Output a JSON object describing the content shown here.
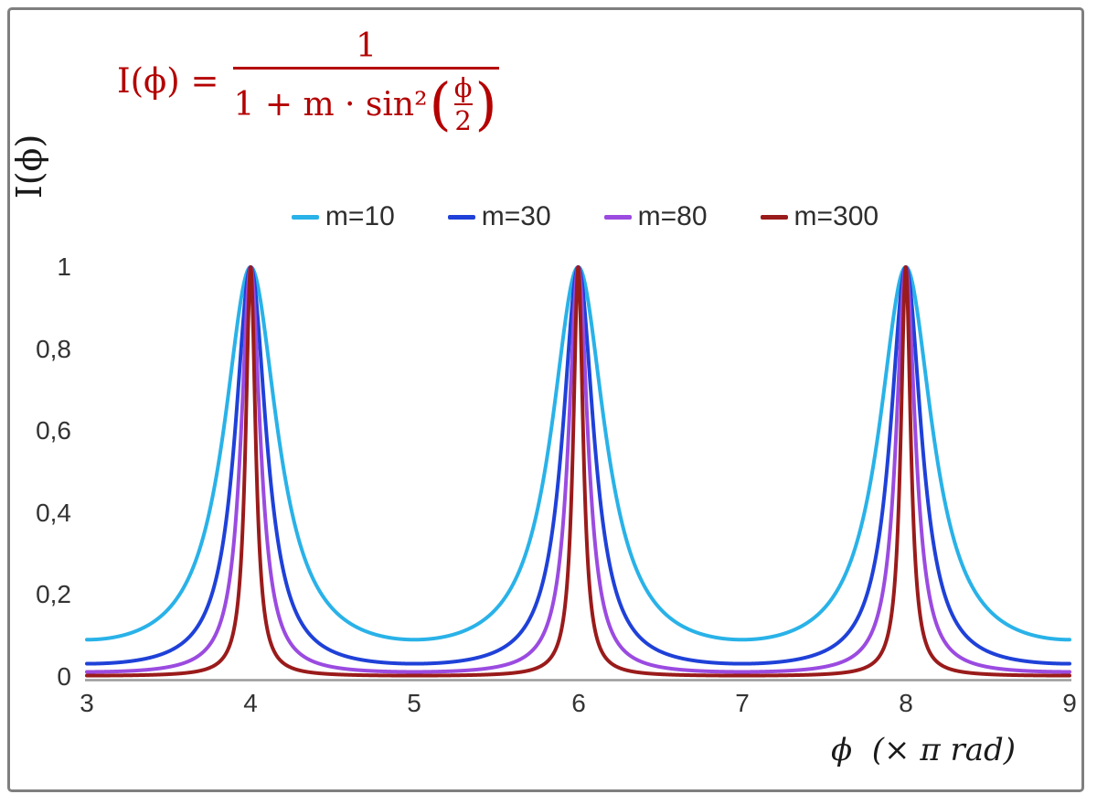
{
  "chart_data": {
    "type": "line",
    "function": "I(phi) = 1 / (1 + m * sin^2(phi/2))",
    "x_unit": "pi rad",
    "xlim": [
      3,
      9
    ],
    "ylim": [
      0,
      1
    ],
    "x_ticks": [
      3,
      4,
      5,
      6,
      7,
      8,
      9
    ],
    "x_tick_labels": [
      "3",
      "4",
      "5",
      "6",
      "7",
      "8",
      "9"
    ],
    "y_ticks": [
      0,
      0.2,
      0.4,
      0.6,
      0.8,
      1
    ],
    "y_tick_labels": [
      "0",
      "0,2",
      "0,4",
      "0,6",
      "0,8",
      "1"
    ],
    "xlabel": "ϕ  (× π rad)",
    "ylabel": "I(ϕ)",
    "grid": false,
    "legend_position": "top-center",
    "series": [
      {
        "name": "m=10",
        "m": 10,
        "color": "#29b2e8"
      },
      {
        "name": "m=30",
        "m": 30,
        "color": "#1f41d8"
      },
      {
        "name": "m=80",
        "m": 80,
        "color": "#9b4be0"
      },
      {
        "name": "m=300",
        "m": 300,
        "color": "#9a1b1b"
      }
    ],
    "peaks_x": [
      4,
      6,
      8
    ],
    "peak_value": 1
  },
  "formula": {
    "lhs": "I(ϕ) =",
    "numerator": "1",
    "den_prefix": "1 + m · sin²",
    "inner_num": "ϕ",
    "inner_den": "2",
    "color": "#b40000"
  },
  "axis": {
    "line_color": "#9a9a9a",
    "frame_color": "#7f7f7f",
    "text_color": "#333333"
  }
}
